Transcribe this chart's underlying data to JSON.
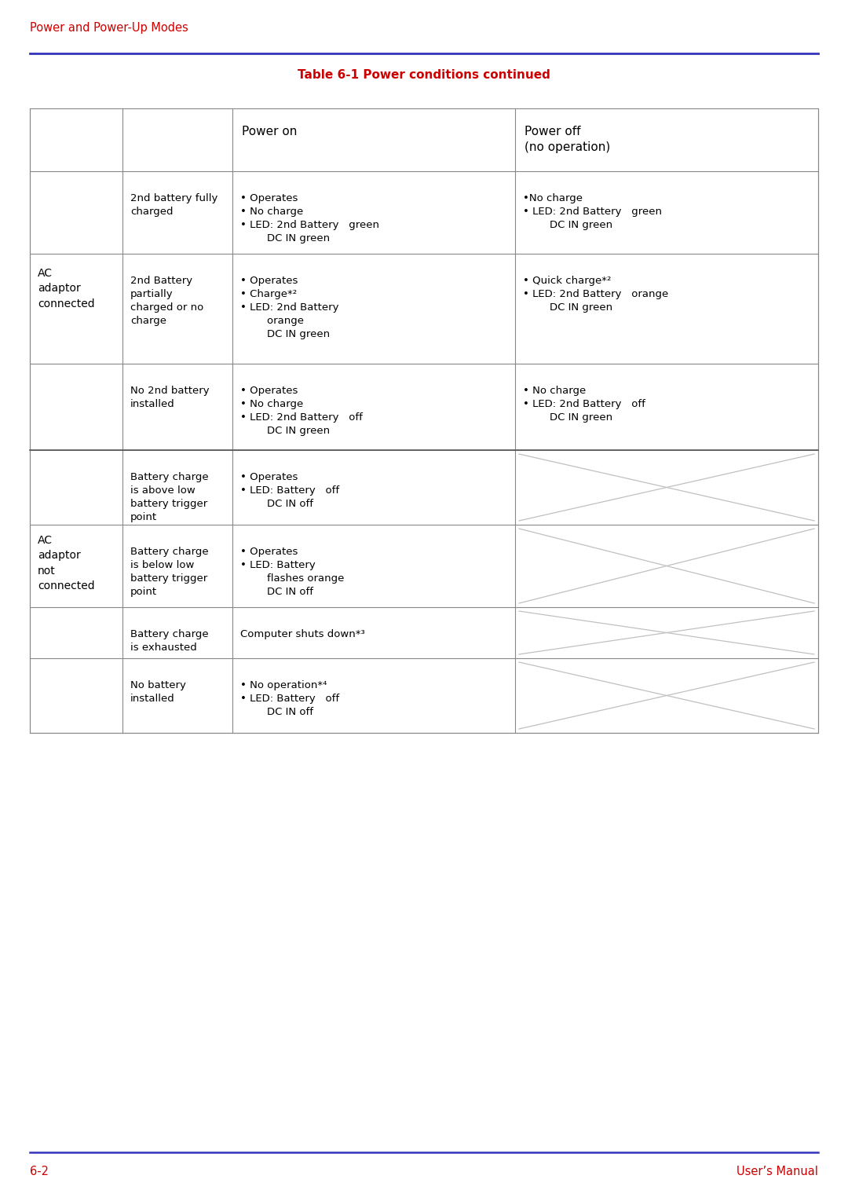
{
  "page_title": "Power and Power-Up Modes",
  "table_title": "Table 6-1 Power conditions continued",
  "header_color": "#cc0000",
  "line_color": "#3333bb",
  "text_color": "#000000",
  "bg_color": "#ffffff",
  "footer_left": "6-2",
  "footer_right": "User’s Manual",
  "col_headers": [
    "Power on",
    "Power off\n(no operation)"
  ],
  "rows": [
    {
      "group": "AC\nadaptor\nconnected",
      "condition": "2nd battery fully\ncharged",
      "power_on_lines": [
        "• Operates",
        "• No charge",
        "• LED: 2nd Battery   green",
        "        DC IN green"
      ],
      "power_off_lines": [
        "•No charge",
        "• LED: 2nd Battery   green",
        "        DC IN green"
      ],
      "na": false
    },
    {
      "group": "",
      "condition": "2nd Battery\npartially\ncharged or no\ncharge",
      "power_on_lines": [
        "• Operates",
        "• Charge*²",
        "• LED: 2nd Battery",
        "        orange",
        "        DC IN green"
      ],
      "power_off_lines": [
        "• Quick charge*²",
        "• LED: 2nd Battery   orange",
        "        DC IN green"
      ],
      "na": false
    },
    {
      "group": "",
      "condition": "No 2nd battery\ninstalled",
      "power_on_lines": [
        "• Operates",
        "• No charge",
        "• LED: 2nd Battery   off",
        "        DC IN green"
      ],
      "power_off_lines": [
        "• No charge",
        "• LED: 2nd Battery   off",
        "        DC IN green"
      ],
      "na": false
    },
    {
      "group": "AC\nadaptor\nnot\nconnected",
      "condition": "Battery charge\nis above low\nbattery trigger\npoint",
      "power_on_lines": [
        "• Operates",
        "• LED: Battery   off",
        "        DC IN off"
      ],
      "power_off_lines": [],
      "na": true
    },
    {
      "group": "",
      "condition": "Battery charge\nis below low\nbattery trigger\npoint",
      "power_on_lines": [
        "• Operates",
        "• LED: Battery",
        "        flashes orange",
        "        DC IN off"
      ],
      "power_off_lines": [],
      "na": true
    },
    {
      "group": "",
      "condition": "Battery charge\nis exhausted",
      "power_on_lines": [
        "Computer shuts down*³"
      ],
      "power_off_lines": [],
      "na": true
    },
    {
      "group": "",
      "condition": "No battery\ninstalled",
      "power_on_lines": [
        "• No operation*⁴",
        "• LED: Battery   off",
        "        DC IN off"
      ],
      "power_off_lines": [],
      "na": true
    }
  ],
  "group_spans": [
    {
      "label": "AC\nadaptor\nconnected",
      "start": 0,
      "end": 2
    },
    {
      "label": "AC\nadaptor\nnot\nconnected",
      "start": 3,
      "end": 6
    }
  ]
}
